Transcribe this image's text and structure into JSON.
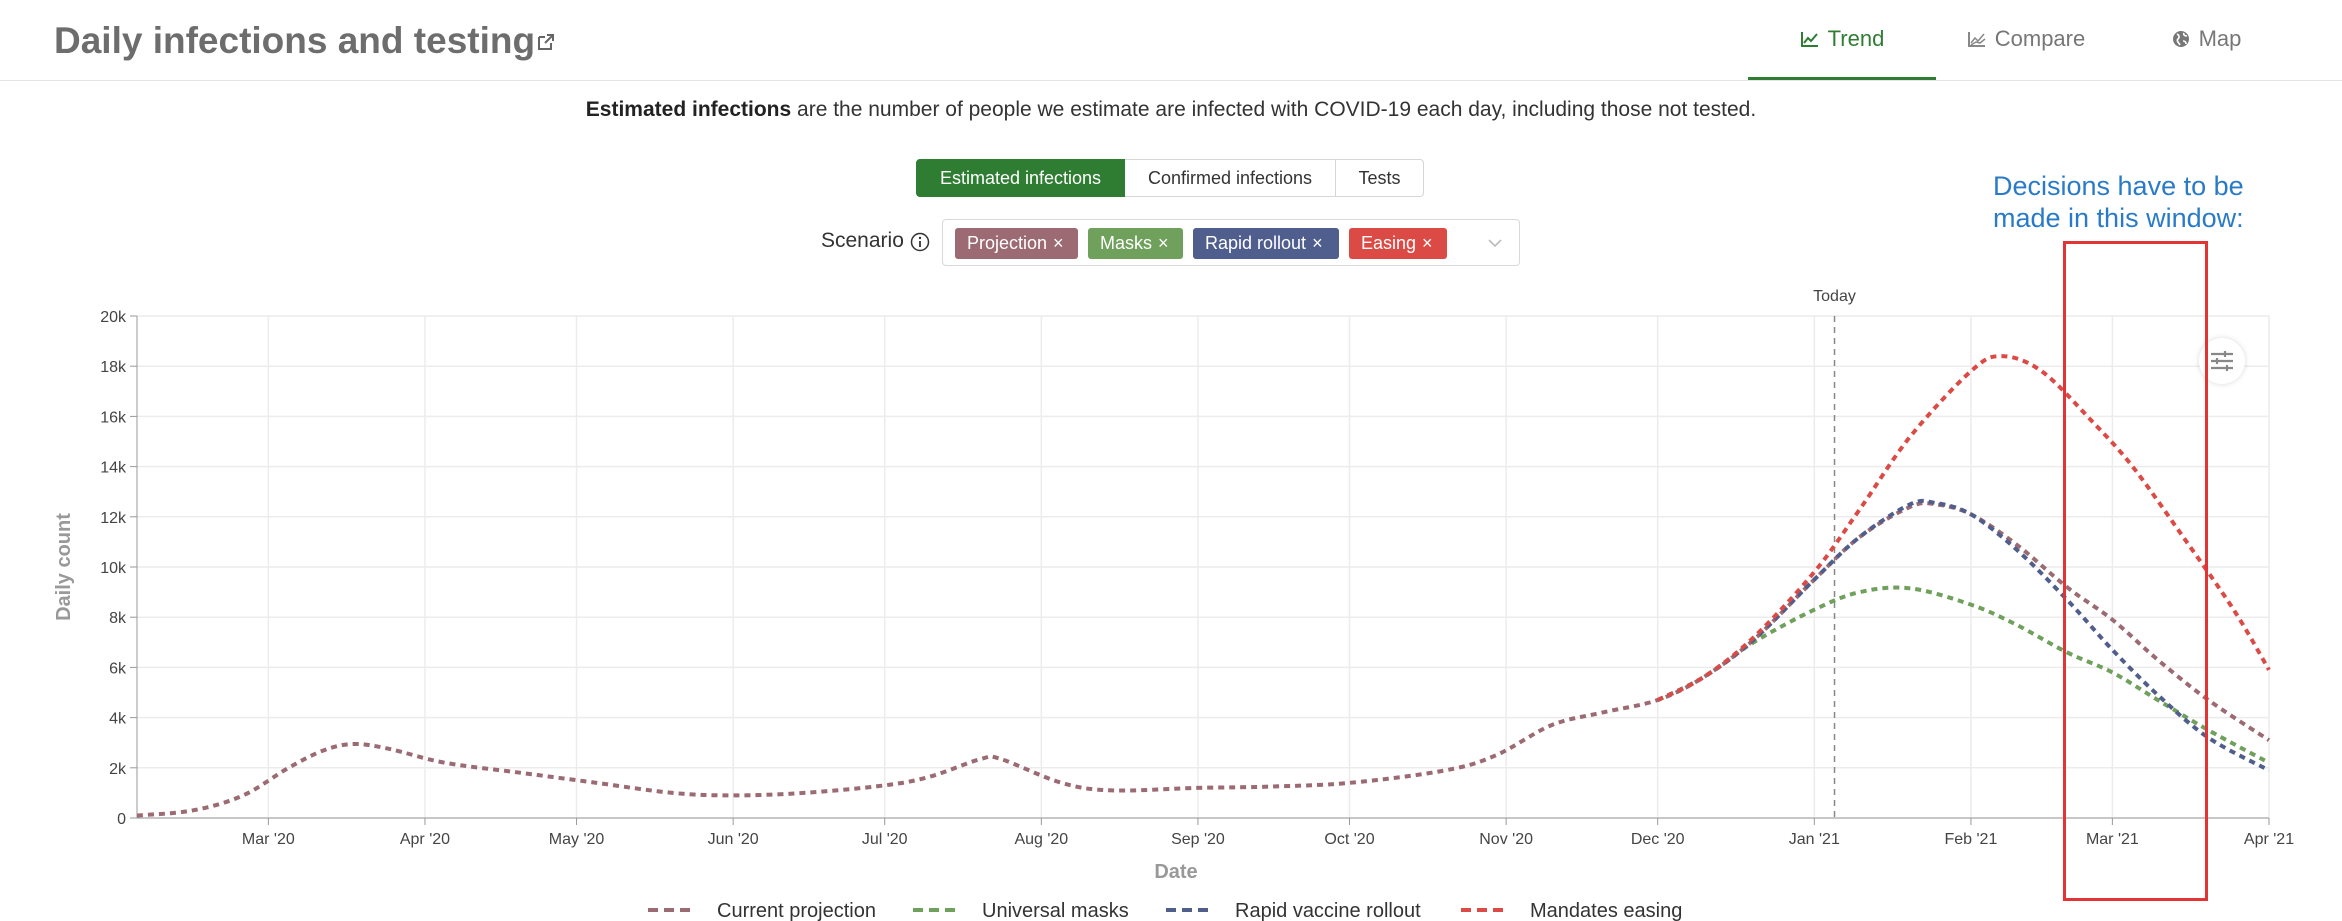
{
  "header": {
    "title": "Daily infections and testing",
    "tabs": [
      {
        "label": "Trend",
        "active": true
      },
      {
        "label": "Compare",
        "active": false
      },
      {
        "label": "Map",
        "active": false
      }
    ]
  },
  "description": {
    "bold": "Estimated infections",
    "rest": " are the number of people we estimate are infected with COVID-19 each day, including those not tested."
  },
  "metric_toggle": [
    "Estimated infections",
    "Confirmed infections",
    "Tests"
  ],
  "scenario": {
    "label": "Scenario",
    "chips": [
      {
        "label": "Projection",
        "color": "#9b6a72"
      },
      {
        "label": "Masks",
        "color": "#6fa05c"
      },
      {
        "label": "Rapid rollout",
        "color": "#4f5e8c"
      },
      {
        "label": "Easing",
        "color": "#dc4a45"
      }
    ]
  },
  "annotation": {
    "line1": "Decisions have to be",
    "line2": "made in this window:"
  },
  "colors": {
    "accent": "#2e7d32",
    "projection": "#9b6a72",
    "masks": "#6fa05c",
    "rapid": "#4f5e8c",
    "easing": "#dc4a45",
    "callout": "#2a7bc7"
  },
  "chart_data": {
    "type": "line",
    "xlabel": "Date",
    "ylabel": "Daily count",
    "today_label": "Today",
    "today_date": "2021-01-05",
    "xlim": [
      "2020-02-04",
      "2021-04-01"
    ],
    "ylim": [
      0,
      20000
    ],
    "yticks": [
      0,
      2000,
      4000,
      6000,
      8000,
      10000,
      12000,
      14000,
      16000,
      18000,
      20000
    ],
    "ytick_labels": [
      "0",
      "2k",
      "4k",
      "6k",
      "8k",
      "10k",
      "12k",
      "14k",
      "16k",
      "18k",
      "20k"
    ],
    "xticks": [
      "2020-03-01",
      "2020-04-01",
      "2020-05-01",
      "2020-06-01",
      "2020-07-01",
      "2020-08-01",
      "2020-09-01",
      "2020-10-01",
      "2020-11-01",
      "2020-12-01",
      "2021-01-01",
      "2021-02-01",
      "2021-03-01",
      "2021-04-01"
    ],
    "xtick_labels": [
      "Mar '20",
      "Apr '20",
      "May '20",
      "Jun '20",
      "Jul '20",
      "Aug '20",
      "Sep '20",
      "Oct '20",
      "Nov '20",
      "Dec '20",
      "Jan '21",
      "Feb '21",
      "Mar '21",
      "Apr '21"
    ],
    "grid": true,
    "legend_position": "bottom",
    "series": [
      {
        "name": "Current projection",
        "color": "#9b6a72",
        "points": [
          [
            "2020-02-04",
            100
          ],
          [
            "2020-02-15",
            300
          ],
          [
            "2020-02-25",
            900
          ],
          [
            "2020-03-05",
            2000
          ],
          [
            "2020-03-12",
            2700
          ],
          [
            "2020-03-18",
            2950
          ],
          [
            "2020-03-25",
            2750
          ],
          [
            "2020-04-05",
            2200
          ],
          [
            "2020-04-20",
            1800
          ],
          [
            "2020-05-05",
            1400
          ],
          [
            "2020-05-20",
            1000
          ],
          [
            "2020-06-01",
            900
          ],
          [
            "2020-06-15",
            1000
          ],
          [
            "2020-07-01",
            1300
          ],
          [
            "2020-07-10",
            1650
          ],
          [
            "2020-07-20",
            2350
          ],
          [
            "2020-07-24",
            2350
          ],
          [
            "2020-08-05",
            1400
          ],
          [
            "2020-08-15",
            1100
          ],
          [
            "2020-09-01",
            1200
          ],
          [
            "2020-09-15",
            1250
          ],
          [
            "2020-10-01",
            1400
          ],
          [
            "2020-10-20",
            1900
          ],
          [
            "2020-10-30",
            2500
          ],
          [
            "2020-11-10",
            3700
          ],
          [
            "2020-11-20",
            4200
          ],
          [
            "2020-12-01",
            4700
          ],
          [
            "2020-12-10",
            5600
          ],
          [
            "2020-12-20",
            7100
          ],
          [
            "2021-01-01",
            9500
          ],
          [
            "2021-01-10",
            11200
          ],
          [
            "2021-01-20",
            12400
          ],
          [
            "2021-01-25",
            12500
          ],
          [
            "2021-02-01",
            12100
          ],
          [
            "2021-02-10",
            10900
          ],
          [
            "2021-02-20",
            9200
          ],
          [
            "2021-03-01",
            7900
          ],
          [
            "2021-03-10",
            6300
          ],
          [
            "2021-03-20",
            4700
          ],
          [
            "2021-04-01",
            3100
          ]
        ]
      },
      {
        "name": "Universal masks",
        "color": "#6fa05c",
        "points": [
          [
            "2020-12-01",
            4700
          ],
          [
            "2020-12-10",
            5600
          ],
          [
            "2020-12-20",
            7000
          ],
          [
            "2021-01-01",
            8300
          ],
          [
            "2021-01-10",
            9000
          ],
          [
            "2021-01-20",
            9150
          ],
          [
            "2021-02-01",
            8500
          ],
          [
            "2021-02-10",
            7700
          ],
          [
            "2021-02-20",
            6600
          ],
          [
            "2021-03-01",
            5800
          ],
          [
            "2021-03-10",
            4700
          ],
          [
            "2021-03-20",
            3500
          ],
          [
            "2021-04-01",
            2200
          ]
        ]
      },
      {
        "name": "Rapid vaccine rollout",
        "color": "#4f5e8c",
        "points": [
          [
            "2020-12-01",
            4700
          ],
          [
            "2020-12-10",
            5600
          ],
          [
            "2020-12-20",
            7100
          ],
          [
            "2021-01-01",
            9500
          ],
          [
            "2021-01-10",
            11200
          ],
          [
            "2021-01-20",
            12500
          ],
          [
            "2021-01-25",
            12550
          ],
          [
            "2021-02-01",
            12100
          ],
          [
            "2021-02-10",
            10700
          ],
          [
            "2021-02-20",
            8700
          ],
          [
            "2021-03-01",
            6700
          ],
          [
            "2021-03-10",
            4900
          ],
          [
            "2021-03-20",
            3200
          ],
          [
            "2021-04-01",
            1900
          ]
        ]
      },
      {
        "name": "Mandates easing",
        "color": "#dc4a45",
        "points": [
          [
            "2020-12-01",
            4700
          ],
          [
            "2020-12-10",
            5600
          ],
          [
            "2020-12-20",
            7200
          ],
          [
            "2021-01-01",
            9800
          ],
          [
            "2021-01-10",
            12300
          ],
          [
            "2021-01-20",
            15200
          ],
          [
            "2021-02-01",
            17800
          ],
          [
            "2021-02-07",
            18400
          ],
          [
            "2021-02-15",
            17800
          ],
          [
            "2021-02-25",
            15800
          ],
          [
            "2021-03-05",
            14000
          ],
          [
            "2021-03-15",
            11200
          ],
          [
            "2021-03-25",
            8300
          ],
          [
            "2021-04-01",
            5900
          ]
        ]
      }
    ]
  }
}
